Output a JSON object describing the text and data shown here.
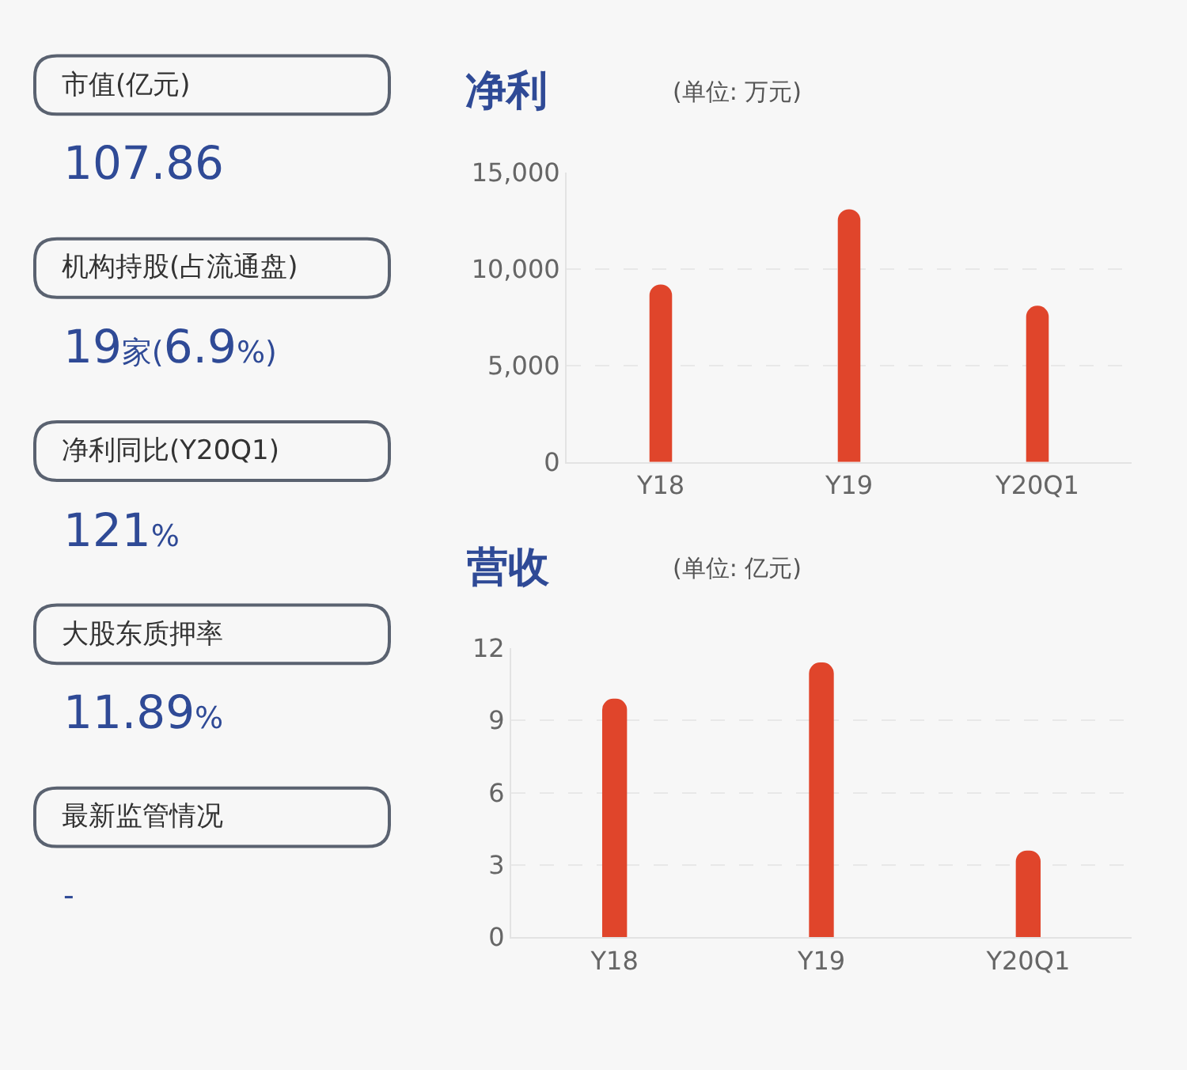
{
  "chart_data": [
    {
      "type": "other",
      "annotations": [
        "市值(亿元)",
        "107.86",
        "机构持股(占流通盘)",
        "19家(6.9%)",
        "净利同比(Y20Q1)",
        "121%",
        "大股东质押率",
        "11.89%",
        "最新监管情况",
        "-"
      ]
    },
    {
      "type": "bar",
      "title": "净利",
      "subtitle": "(单位: 万元)",
      "categories": [
        "Y18",
        "Y19",
        "Y20Q1"
      ],
      "values": [
        9200,
        13100,
        8100
      ],
      "color": "#e0452b",
      "ylim": [
        0,
        15000
      ],
      "yticks": [
        0,
        {
          "value": 5000,
          "label": "5,000"
        },
        {
          "value": 10000,
          "label": "10,000"
        },
        {
          "value": 15000,
          "label": "15,000"
        }
      ],
      "grid": "y"
    },
    {
      "type": "bar",
      "title": "营收",
      "subtitle": "(单位: 亿元)",
      "categories": [
        "Y18",
        "Y19",
        "Y20Q1"
      ],
      "values": [
        9.9,
        11.4,
        3.6
      ],
      "color": "#e0452b",
      "ylim": [
        0,
        12
      ],
      "yticks": [
        0,
        3,
        6,
        9,
        12
      ],
      "grid": "y"
    }
  ]
}
